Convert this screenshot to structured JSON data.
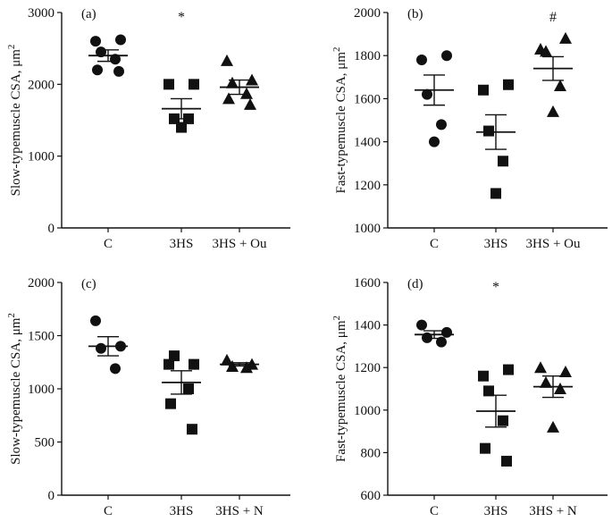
{
  "chart_data": [
    {
      "id": "a",
      "type": "scatter",
      "panel_label": "(a)",
      "ylabel": "Slow-typemuscle CSA, μm",
      "ylabel_sup": "2",
      "ylim": [
        0,
        3000
      ],
      "yticks": [
        0,
        1000,
        2000,
        3000
      ],
      "categories": [
        "C",
        "3HS",
        "3HS + Ou"
      ],
      "significance": [
        "",
        "*",
        ""
      ],
      "groups": [
        {
          "category": "C",
          "marker": "circle",
          "points": [
            2600,
            2620,
            2450,
            2350,
            2200,
            2180
          ],
          "mean": 2400,
          "sem": 80
        },
        {
          "category": "3HS",
          "marker": "square",
          "points": [
            2000,
            2000,
            1520,
            1520,
            1400
          ],
          "mean": 1660,
          "sem": 140
        },
        {
          "category": "3HS + Ou",
          "marker": "triangle",
          "points": [
            2330,
            2060,
            2020,
            1870,
            1800,
            1720
          ],
          "mean": 1960,
          "sem": 100
        }
      ]
    },
    {
      "id": "b",
      "type": "scatter",
      "panel_label": "(b)",
      "ylabel": "Fast-typemuscle CSA, μm",
      "ylabel_sup": "2",
      "ylim": [
        1000,
        2000
      ],
      "yticks": [
        1000,
        1200,
        1400,
        1600,
        1800,
        2000
      ],
      "categories": [
        "C",
        "3HS",
        "3HS + Ou"
      ],
      "significance": [
        "",
        "",
        "#"
      ],
      "groups": [
        {
          "category": "C",
          "marker": "circle",
          "points": [
            1780,
            1800,
            1620,
            1480,
            1400
          ],
          "mean": 1640,
          "sem": 70
        },
        {
          "category": "3HS",
          "marker": "square",
          "points": [
            1640,
            1665,
            1450,
            1310,
            1160
          ],
          "mean": 1445,
          "sem": 80
        },
        {
          "category": "3HS + Ou",
          "marker": "triangle",
          "points": [
            1830,
            1880,
            1820,
            1660,
            1540
          ],
          "mean": 1740,
          "sem": 55
        }
      ]
    },
    {
      "id": "c",
      "type": "scatter",
      "panel_label": "(c)",
      "ylabel": "Slow-typemuscle CSA, μm",
      "ylabel_sup": "2",
      "ylim": [
        0,
        2000
      ],
      "yticks": [
        0,
        500,
        1000,
        1500,
        2000
      ],
      "categories": [
        "C",
        "3HS",
        "3HS + N"
      ],
      "significance": [
        "",
        "",
        ""
      ],
      "groups": [
        {
          "category": "C",
          "marker": "circle",
          "points": [
            1640,
            1400,
            1380,
            1190
          ],
          "mean": 1400,
          "sem": 90
        },
        {
          "category": "3HS",
          "marker": "square",
          "points": [
            1230,
            1230,
            1310,
            1000,
            860,
            620
          ],
          "mean": 1060,
          "sem": 110
        },
        {
          "category": "3HS + N",
          "marker": "triangle",
          "points": [
            1270,
            1230,
            1210,
            1200
          ],
          "mean": 1230,
          "sem": 15
        }
      ]
    },
    {
      "id": "d",
      "type": "scatter",
      "panel_label": "(d)",
      "ylabel": "Fast-typemuscle CSA, μm",
      "ylabel_sup": "2",
      "ylim": [
        600,
        1600
      ],
      "yticks": [
        600,
        800,
        1000,
        1200,
        1400,
        1600
      ],
      "categories": [
        "C",
        "3HS",
        "3HS + N"
      ],
      "significance": [
        "",
        "*",
        ""
      ],
      "groups": [
        {
          "category": "C",
          "marker": "circle",
          "points": [
            1400,
            1365,
            1340,
            1320
          ],
          "mean": 1355,
          "sem": 18
        },
        {
          "category": "3HS",
          "marker": "square",
          "points": [
            1160,
            1190,
            1090,
            950,
            820,
            760
          ],
          "mean": 995,
          "sem": 75
        },
        {
          "category": "3HS + N",
          "marker": "triangle",
          "points": [
            1200,
            1180,
            1130,
            1100,
            920
          ],
          "mean": 1110,
          "sem": 50
        }
      ]
    }
  ]
}
